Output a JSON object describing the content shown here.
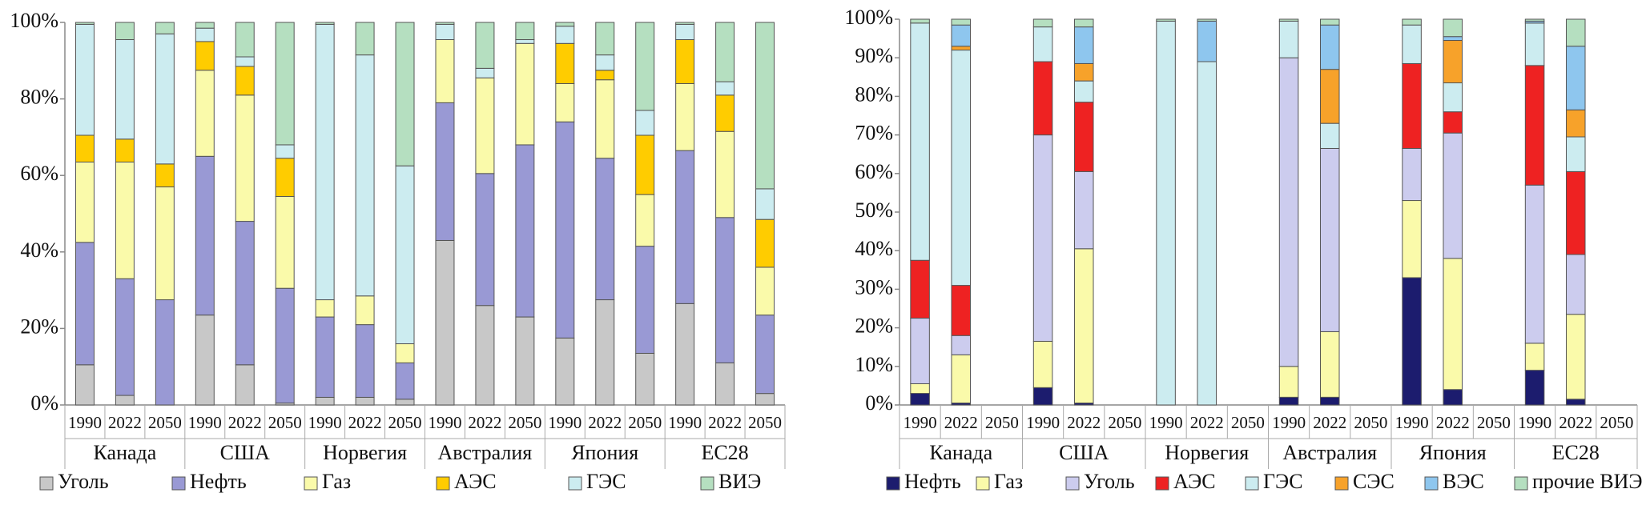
{
  "chart_data": [
    {
      "type": "stacked_bar",
      "categories": [
        "1990",
        "2022",
        "2050",
        "1990",
        "2022",
        "2050",
        "1990",
        "2022",
        "2050",
        "1990",
        "2022",
        "2050",
        "1990",
        "2022",
        "2050",
        "1990",
        "2022",
        "2050"
      ],
      "groups": [
        "Канада",
        "США",
        "Норвегия",
        "Австралия",
        "Япония",
        "ЕС28"
      ],
      "ylim": [
        0,
        100
      ],
      "yticks": [
        {
          "value": 0,
          "label": "0%"
        },
        {
          "value": 20,
          "label": "20%"
        },
        {
          "value": 40,
          "label": "40%"
        },
        {
          "value": 60,
          "label": "60%"
        },
        {
          "value": 80,
          "label": "80%"
        },
        {
          "value": 100,
          "label": "100%"
        }
      ],
      "grid": false,
      "series": [
        {
          "name": "Уголь",
          "color": "#c8c8c8",
          "values": [
            10.5,
            2.5,
            0,
            23.5,
            10.5,
            0.5,
            2,
            2,
            1.5,
            43,
            26,
            23,
            17.5,
            27.5,
            13.5,
            26.5,
            11,
            3
          ]
        },
        {
          "name": "Нефть",
          "color": "#9999d4",
          "values": [
            32,
            30.5,
            27.5,
            41.5,
            37.5,
            30,
            21,
            19,
            9.5,
            36,
            34.5,
            45,
            56.5,
            37,
            28,
            40,
            38,
            20.5
          ]
        },
        {
          "name": "Газ",
          "color": "#fafaaa",
          "values": [
            21,
            30.5,
            29.5,
            22.5,
            33,
            24,
            4.5,
            7.5,
            5,
            16.5,
            25,
            26.5,
            10,
            20.5,
            13.5,
            17.5,
            22.5,
            12.5
          ]
        },
        {
          "name": "АЭС",
          "color": "#ffcc00",
          "values": [
            7,
            6,
            6,
            7.5,
            7.5,
            10,
            0,
            0,
            0,
            0,
            0,
            0,
            10.5,
            2.5,
            15.5,
            11.5,
            9.5,
            12.5
          ]
        },
        {
          "name": "ГЭС",
          "color": "#ccecf0",
          "values": [
            29,
            26,
            34,
            3.5,
            2.5,
            3.5,
            72,
            63,
            46.5,
            4,
            2.5,
            1,
            4.5,
            4,
            6.5,
            4,
            3.5,
            8
          ]
        },
        {
          "name": "ВИЭ",
          "color": "#b5dfc0",
          "values": [
            0.5,
            4.5,
            3,
            1.5,
            9,
            32,
            0.5,
            8.5,
            37.5,
            0.5,
            12,
            4.5,
            1,
            8.5,
            23,
            0.5,
            15.5,
            43.5
          ]
        }
      ]
    },
    {
      "type": "stacked_bar",
      "categories": [
        "1990",
        "2022",
        "2050",
        "1990",
        "2022",
        "2050",
        "1990",
        "2022",
        "2050",
        "1990",
        "2022",
        "2050",
        "1990",
        "2022",
        "2050",
        "1990",
        "2022",
        "2050"
      ],
      "groups": [
        "Канада",
        "США",
        "Норвегия",
        "Австралия",
        "Япония",
        "ЕС28"
      ],
      "ylim": [
        0,
        100
      ],
      "yticks": [
        {
          "value": 0,
          "label": "0%"
        },
        {
          "value": 10,
          "label": "10%"
        },
        {
          "value": 20,
          "label": "20%"
        },
        {
          "value": 30,
          "label": "30%"
        },
        {
          "value": 40,
          "label": "40%"
        },
        {
          "value": 50,
          "label": "50%"
        },
        {
          "value": 60,
          "label": "60%"
        },
        {
          "value": 70,
          "label": "70%"
        },
        {
          "value": 80,
          "label": "80%"
        },
        {
          "value": 90,
          "label": "90%"
        },
        {
          "value": 100,
          "label": "100%"
        }
      ],
      "grid": false,
      "series": [
        {
          "name": "Нефть",
          "color": "#1c1c6e",
          "values": [
            3,
            0.5,
            null,
            4.5,
            0.5,
            null,
            0,
            0,
            null,
            2,
            2,
            null,
            33,
            4,
            null,
            9,
            1.5,
            null
          ]
        },
        {
          "name": "Газ",
          "color": "#fafaaa",
          "values": [
            2.5,
            12.5,
            null,
            12,
            40,
            null,
            0,
            0,
            null,
            8,
            17,
            null,
            20,
            34,
            null,
            7,
            22,
            null
          ]
        },
        {
          "name": "Уголь",
          "color": "#ccccee",
          "values": [
            17,
            5,
            null,
            53.5,
            20,
            null,
            0,
            0,
            null,
            80,
            47.5,
            null,
            13.5,
            32.5,
            null,
            41,
            15.5,
            null
          ]
        },
        {
          "name": "АЭС",
          "color": "#ee2222",
          "values": [
            15,
            13,
            null,
            19,
            18,
            null,
            0,
            0,
            null,
            0,
            0,
            null,
            22,
            5.5,
            null,
            31,
            21.5,
            null
          ]
        },
        {
          "name": "ГЭС",
          "color": "#ccecf0",
          "values": [
            61.5,
            61,
            null,
            9,
            5.5,
            null,
            99.5,
            89,
            null,
            9.5,
            6.5,
            null,
            10,
            7.5,
            null,
            11,
            9,
            null
          ]
        },
        {
          "name": "СЭС",
          "color": "#f7a22a",
          "values": [
            0,
            1,
            null,
            0,
            4.5,
            null,
            0,
            0,
            null,
            0,
            14,
            null,
            0,
            11,
            null,
            0,
            7,
            null
          ]
        },
        {
          "name": "ВЭС",
          "color": "#8ec6ee",
          "values": [
            0,
            5.5,
            null,
            0,
            9.5,
            null,
            0,
            10.5,
            null,
            0,
            11.5,
            null,
            0,
            1,
            null,
            0.5,
            16.5,
            null
          ]
        },
        {
          "name": "прочие ВИЭ",
          "color": "#b5dfc0",
          "values": [
            1,
            1.5,
            null,
            2,
            2,
            null,
            0.5,
            0.5,
            null,
            0.5,
            1.5,
            null,
            1.5,
            4.5,
            null,
            0.5,
            7,
            null
          ]
        }
      ]
    }
  ]
}
